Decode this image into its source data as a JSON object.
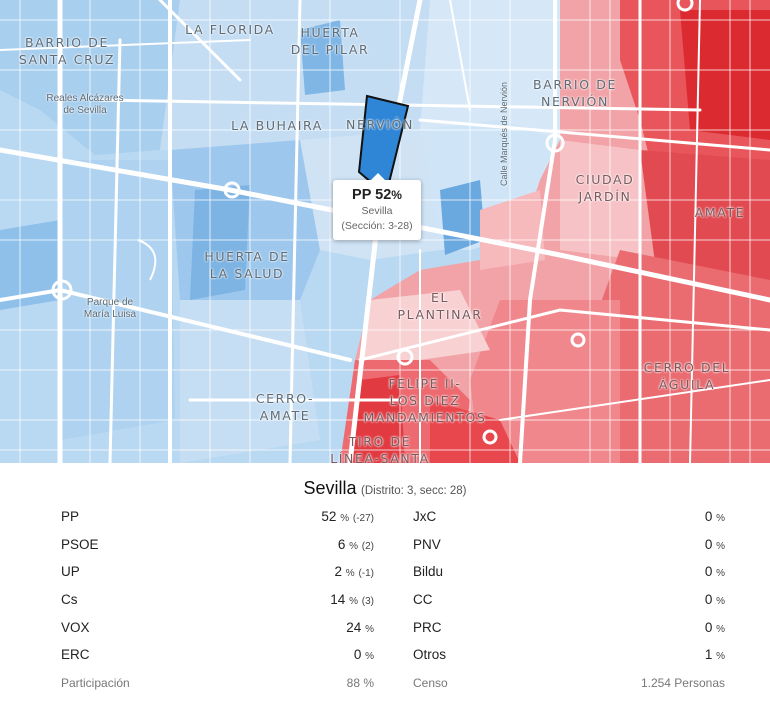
{
  "map": {
    "neighborhoods": [
      {
        "id": "barrio-de-santa-cruz",
        "lines": [
          "BARRIO DE",
          "SANTA CRUZ"
        ],
        "side": "blue"
      },
      {
        "id": "la-florida",
        "lines": [
          "LA FLORIDA"
        ],
        "side": "blue"
      },
      {
        "id": "huerta-del-pilar",
        "lines": [
          "HUERTA",
          "DEL PILAR"
        ],
        "side": "blue"
      },
      {
        "id": "barrio-de-nervion",
        "lines": [
          "BARRIO DE",
          "NERVIÓN"
        ],
        "side": "blue"
      },
      {
        "id": "la-buhaira",
        "lines": [
          "LA BUHAIRA"
        ],
        "side": "blue"
      },
      {
        "id": "nervion",
        "lines": [
          "NERVIÓN"
        ],
        "side": "blue"
      },
      {
        "id": "ciudad-jardin",
        "lines": [
          "CIUDAD",
          "JARDÍN"
        ],
        "side": "red"
      },
      {
        "id": "amate",
        "lines": [
          "AMATE"
        ],
        "side": "red"
      },
      {
        "id": "huerta-de-la-salud",
        "lines": [
          "HUERTA DE",
          "LA SALUD"
        ],
        "side": "blue"
      },
      {
        "id": "el-plantinar",
        "lines": [
          "EL",
          "PLANTINAR"
        ],
        "side": "red"
      },
      {
        "id": "cerro-del-aguila",
        "lines": [
          "CERRO DEL",
          "ÁGUILA"
        ],
        "side": "red"
      },
      {
        "id": "cerro-amate",
        "lines": [
          "CERRO-",
          "AMATE"
        ],
        "side": "blue"
      },
      {
        "id": "felipe-ii",
        "lines": [
          "FELIPE II-",
          "LOS DIEZ",
          "MANDAMIENTOS"
        ],
        "side": "red"
      },
      {
        "id": "tiro-de-linea",
        "lines": [
          "TIRO DE",
          "LÍNEA-SANTA"
        ],
        "side": "red"
      }
    ],
    "pois": [
      {
        "id": "reales-alcazares",
        "lines": [
          "Reales Alcázares",
          "de Sevilla"
        ]
      },
      {
        "id": "parque-maria-luisa",
        "lines": [
          "Parque de",
          "María Luisa"
        ]
      }
    ],
    "street": "Calle Marqués de Nervión",
    "colors": {
      "blue_light": "#c6def3",
      "blue_mid": "#8fbfe8",
      "blue_dark": "#3b8fd8",
      "red_light": "#f5b7ba",
      "red_mid": "#ee7c80",
      "red_dark": "#e2343b",
      "selected": "#2f86d6"
    }
  },
  "tooltip": {
    "party": "PP",
    "value": "52",
    "unit": "%",
    "city": "Sevilla",
    "section": "(Sección: 3-28)"
  },
  "panel": {
    "city": "Sevilla",
    "meta": "(Distrito: 3, secc: 28)",
    "left": [
      {
        "name": "PP",
        "value": "52",
        "unit": "%",
        "diff": "(-27)"
      },
      {
        "name": "PSOE",
        "value": "6",
        "unit": "%",
        "diff": "(2)"
      },
      {
        "name": "UP",
        "value": "2",
        "unit": "%",
        "diff": "(-1)"
      },
      {
        "name": "Cs",
        "value": "14",
        "unit": "%",
        "diff": "(3)"
      },
      {
        "name": "VOX",
        "value": "24",
        "unit": "%",
        "diff": ""
      },
      {
        "name": "ERC",
        "value": "0",
        "unit": "%",
        "diff": ""
      }
    ],
    "right": [
      {
        "name": "JxC",
        "value": "0",
        "unit": "%",
        "diff": ""
      },
      {
        "name": "PNV",
        "value": "0",
        "unit": "%",
        "diff": ""
      },
      {
        "name": "Bildu",
        "value": "0",
        "unit": "%",
        "diff": ""
      },
      {
        "name": "CC",
        "value": "0",
        "unit": "%",
        "diff": ""
      },
      {
        "name": "PRC",
        "value": "0",
        "unit": "%",
        "diff": ""
      },
      {
        "name": "Otros",
        "value": "1",
        "unit": "%",
        "diff": ""
      }
    ],
    "participation_label": "Participación",
    "participation_value": "88 %",
    "census_label": "Censo",
    "census_value": "1.254 Personas"
  }
}
